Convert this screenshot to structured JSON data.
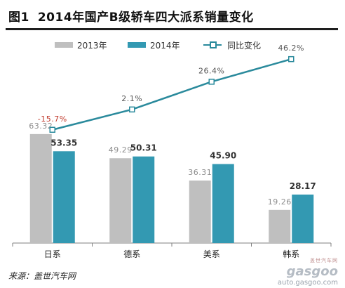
{
  "figure_label": "图1",
  "title": "2014年国产B级轿车四大派系销量变化",
  "source": "来源：盖世汽车网",
  "watermark": {
    "logo": "gasgoo",
    "cn": "盖世汽车网",
    "url": "auto.gasgoo.com"
  },
  "colors": {
    "series_2013": "#BFBFBF",
    "series_2014": "#3399B2",
    "yoy_line": "#2A8A9C",
    "negative_label": "#C0392B"
  },
  "chart_data": {
    "type": "bar",
    "title": "2014年国产B级轿车四大派系销量变化",
    "categories": [
      "日系",
      "德系",
      "美系",
      "韩系"
    ],
    "series": [
      {
        "name": "2013年",
        "values": [
          63.32,
          49.29,
          36.31,
          19.26
        ]
      },
      {
        "name": "2014年",
        "values": [
          53.35,
          50.31,
          45.9,
          28.17
        ]
      }
    ],
    "line_series": {
      "name": "同比变化",
      "values": [
        -15.7,
        2.1,
        26.4,
        46.2
      ],
      "labels": [
        "-15.7%",
        "2.1%",
        "26.4%",
        "46.2%"
      ]
    },
    "value_labels_2013": [
      "63.32",
      "49.29",
      "36.31",
      "19.26"
    ],
    "value_labels_2014": [
      "53.35",
      "50.31",
      "45.90",
      "28.17"
    ],
    "ylim": [
      0,
      80
    ],
    "line_ylim": [
      -110,
      50
    ],
    "grid": false,
    "legend_position": "top"
  }
}
